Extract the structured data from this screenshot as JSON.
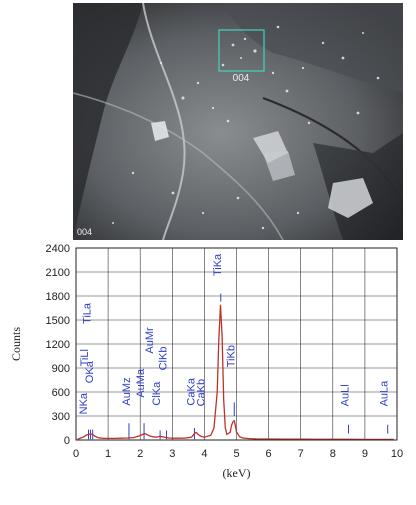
{
  "sem_image": {
    "region_label": "004",
    "corner_label": "004",
    "colors": {
      "box": "#3fd4c0",
      "text": "#e8eef0",
      "corner_text": "#f0f0f0"
    }
  },
  "chart_data": {
    "type": "line",
    "xlabel": "(keV)",
    "ylabel": "Counts",
    "xlim": [
      0,
      10
    ],
    "ylim": [
      0,
      2400
    ],
    "x_ticks": [
      "0",
      "1",
      "2",
      "3",
      "4",
      "5",
      "6",
      "7",
      "8",
      "9",
      "10"
    ],
    "y_ticks": [
      "0",
      "300",
      "600",
      "900",
      "1200",
      "1500",
      "1800",
      "2100",
      "2400"
    ],
    "grid": true,
    "colors": {
      "spectrum": "#c0302a",
      "labels": "#2f3fc8",
      "grid": "#333333",
      "axis": "#222222"
    },
    "series": [
      {
        "x": [
          0.05,
          0.15,
          0.25,
          0.3,
          0.35,
          0.4,
          0.45,
          0.5,
          0.55,
          0.6,
          0.7,
          0.8,
          0.9,
          1.0,
          1.2,
          1.4,
          1.6,
          1.8,
          2.0,
          2.1,
          2.15,
          2.2,
          2.3,
          2.4,
          2.5,
          2.6,
          2.7,
          2.8,
          2.9,
          3.0,
          3.2,
          3.4,
          3.6,
          3.7,
          3.75,
          3.8,
          3.9,
          4.0,
          4.2,
          4.3,
          4.4,
          4.45,
          4.5,
          4.55,
          4.6,
          4.65,
          4.7,
          4.8,
          4.85,
          4.9,
          4.93,
          4.97,
          5.0,
          5.1,
          5.2,
          5.4,
          5.6,
          6.0,
          6.5,
          7.0,
          7.5,
          8.0,
          8.5,
          9.0,
          9.5,
          9.9
        ],
        "y": [
          10,
          25,
          40,
          55,
          65,
          70,
          72,
          75,
          60,
          45,
          28,
          22,
          20,
          20,
          20,
          22,
          25,
          30,
          55,
          75,
          80,
          70,
          50,
          40,
          35,
          45,
          40,
          30,
          25,
          22,
          22,
          24,
          35,
          85,
          95,
          70,
          45,
          35,
          60,
          150,
          600,
          1250,
          1690,
          1300,
          500,
          150,
          70,
          95,
          190,
          235,
          240,
          170,
          100,
          40,
          25,
          18,
          14,
          12,
          10,
          10,
          9,
          9,
          9,
          8,
          8,
          8
        ]
      }
    ],
    "peak_labels": [
      {
        "text": "TiLa",
        "x": 0.45,
        "y": 1450
      },
      {
        "text": "TiLl",
        "x": 0.38,
        "y": 920
      },
      {
        "text": "OKa",
        "x": 0.53,
        "y": 710
      },
      {
        "text": "NKa",
        "x": 0.35,
        "y": 320
      },
      {
        "text": "AuMz",
        "x": 1.69,
        "y": 430
      },
      {
        "text": "AuMa",
        "x": 2.12,
        "y": 530
      },
      {
        "text": "AuMr",
        "x": 2.4,
        "y": 1080
      },
      {
        "text": "ClKa",
        "x": 2.62,
        "y": 430
      },
      {
        "text": "ClKb",
        "x": 2.82,
        "y": 870
      },
      {
        "text": "CaKa",
        "x": 3.69,
        "y": 430
      },
      {
        "text": "CaKb",
        "x": 4.01,
        "y": 420
      },
      {
        "text": "TiKa",
        "x": 4.51,
        "y": 2050
      },
      {
        "text": "TiKb",
        "x": 4.93,
        "y": 910
      },
      {
        "text": "AuLl",
        "x": 8.49,
        "y": 420
      },
      {
        "text": "AuLa",
        "x": 9.71,
        "y": 420
      }
    ],
    "marker_lines": [
      {
        "x": 0.39,
        "y0": 10,
        "y1": 130
      },
      {
        "x": 0.45,
        "y0": 10,
        "y1": 130
      },
      {
        "x": 0.52,
        "y0": 10,
        "y1": 130
      },
      {
        "x": 1.65,
        "y0": 10,
        "y1": 210
      },
      {
        "x": 2.12,
        "y0": 10,
        "y1": 210
      },
      {
        "x": 2.62,
        "y0": 10,
        "y1": 120
      },
      {
        "x": 2.82,
        "y0": 10,
        "y1": 120
      },
      {
        "x": 3.69,
        "y0": 10,
        "y1": 150
      },
      {
        "x": 4.51,
        "y0": 1730,
        "y1": 1830
      },
      {
        "x": 4.93,
        "y0": 300,
        "y1": 470
      },
      {
        "x": 8.49,
        "y0": 80,
        "y1": 190
      },
      {
        "x": 9.71,
        "y0": 80,
        "y1": 190
      }
    ]
  }
}
